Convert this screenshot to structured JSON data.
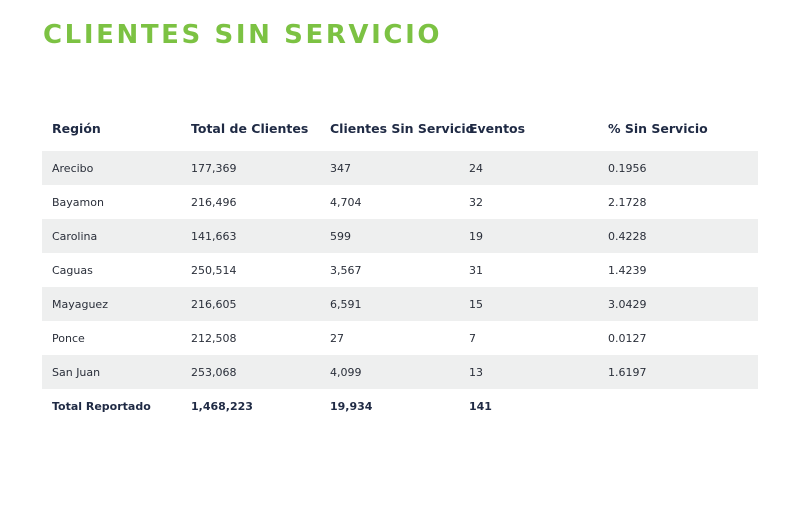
{
  "page": {
    "title": "CLIENTES SIN SERVICIO"
  },
  "table": {
    "columns": [
      "Región",
      "Total de Clientes",
      "Clientes Sin Servicio",
      "Eventos",
      "% Sin Servicio"
    ],
    "rows": [
      [
        "Arecibo",
        "177,369",
        "347",
        "24",
        "0.1956"
      ],
      [
        "Bayamon",
        "216,496",
        "4,704",
        "32",
        "2.1728"
      ],
      [
        "Carolina",
        "141,663",
        "599",
        "19",
        "0.4228"
      ],
      [
        "Caguas",
        "250,514",
        "3,567",
        "31",
        "1.4239"
      ],
      [
        "Mayaguez",
        "216,605",
        "6,591",
        "15",
        "3.0429"
      ],
      [
        "Ponce",
        "212,508",
        "27",
        "7",
        "0.0127"
      ],
      [
        "San Juan",
        "253,068",
        "4,099",
        "13",
        "1.6197"
      ]
    ],
    "total": [
      "Total Reportado",
      "1,468,223",
      "19,934",
      "141",
      ""
    ]
  },
  "colors": {
    "title": "#7cc243",
    "header_text": "#1f2a44",
    "stripe": "#eeefef"
  }
}
